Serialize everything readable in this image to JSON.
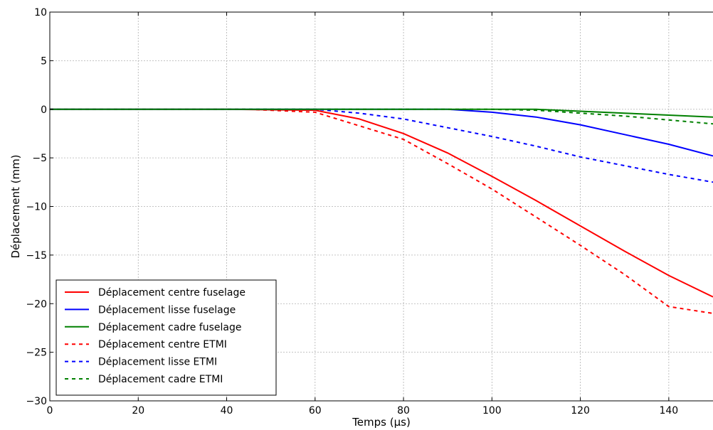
{
  "chart_data": {
    "type": "line",
    "xlabel": "Temps (µs)",
    "ylabel": "Déplacement (mm)",
    "xlim": [
      0,
      150
    ],
    "ylim": [
      -30,
      10
    ],
    "x_ticks": [
      0,
      20,
      40,
      60,
      80,
      100,
      120,
      140
    ],
    "y_ticks": [
      10,
      5,
      0,
      -5,
      -10,
      -15,
      -20,
      -25,
      -30
    ],
    "y_tick_labels": [
      "10",
      "5",
      "0",
      "−5",
      "−10",
      "−15",
      "−20",
      "−25",
      "−30"
    ],
    "grid": true,
    "legend_position": "lower-left",
    "series": [
      {
        "name": "Déplacement centre fuselage",
        "color": "#ff0000",
        "style": "solid",
        "points": [
          [
            0,
            0
          ],
          [
            40,
            0
          ],
          [
            60,
            -0.1
          ],
          [
            70,
            -1.0
          ],
          [
            80,
            -2.5
          ],
          [
            90,
            -4.5
          ],
          [
            100,
            -6.9
          ],
          [
            110,
            -9.4
          ],
          [
            120,
            -12.0
          ],
          [
            130,
            -14.6
          ],
          [
            140,
            -17.1
          ],
          [
            150,
            -19.3
          ]
        ]
      },
      {
        "name": "Déplacement lisse fuselage",
        "color": "#0000ff",
        "style": "solid",
        "points": [
          [
            0,
            0
          ],
          [
            90,
            0
          ],
          [
            100,
            -0.3
          ],
          [
            110,
            -0.8
          ],
          [
            120,
            -1.6
          ],
          [
            130,
            -2.6
          ],
          [
            140,
            -3.6
          ],
          [
            150,
            -4.8
          ]
        ]
      },
      {
        "name": "Déplacement cadre fuselage",
        "color": "#008000",
        "style": "solid",
        "points": [
          [
            0,
            0
          ],
          [
            110,
            0
          ],
          [
            120,
            -0.2
          ],
          [
            130,
            -0.4
          ],
          [
            140,
            -0.6
          ],
          [
            150,
            -0.8
          ]
        ]
      },
      {
        "name": "Déplacement centre ETMI",
        "color": "#ff0000",
        "style": "dashed",
        "points": [
          [
            0,
            0
          ],
          [
            45,
            0
          ],
          [
            60,
            -0.3
          ],
          [
            70,
            -1.7
          ],
          [
            80,
            -3.1
          ],
          [
            90,
            -5.6
          ],
          [
            100,
            -8.2
          ],
          [
            110,
            -11.1
          ],
          [
            120,
            -14.0
          ],
          [
            130,
            -17.0
          ],
          [
            140,
            -20.3
          ],
          [
            150,
            -21.0
          ]
        ]
      },
      {
        "name": "Déplacement lisse ETMI",
        "color": "#0000ff",
        "style": "dashed",
        "points": [
          [
            0,
            0
          ],
          [
            60,
            0
          ],
          [
            70,
            -0.4
          ],
          [
            80,
            -1.0
          ],
          [
            90,
            -1.9
          ],
          [
            100,
            -2.8
          ],
          [
            110,
            -3.8
          ],
          [
            120,
            -4.9
          ],
          [
            130,
            -5.8
          ],
          [
            140,
            -6.7
          ],
          [
            150,
            -7.5
          ]
        ]
      },
      {
        "name": "Déplacement cadre ETMI",
        "color": "#008000",
        "style": "dashed",
        "points": [
          [
            0,
            0
          ],
          [
            100,
            0
          ],
          [
            110,
            -0.1
          ],
          [
            120,
            -0.4
          ],
          [
            130,
            -0.7
          ],
          [
            140,
            -1.1
          ],
          [
            150,
            -1.5
          ]
        ]
      }
    ]
  }
}
